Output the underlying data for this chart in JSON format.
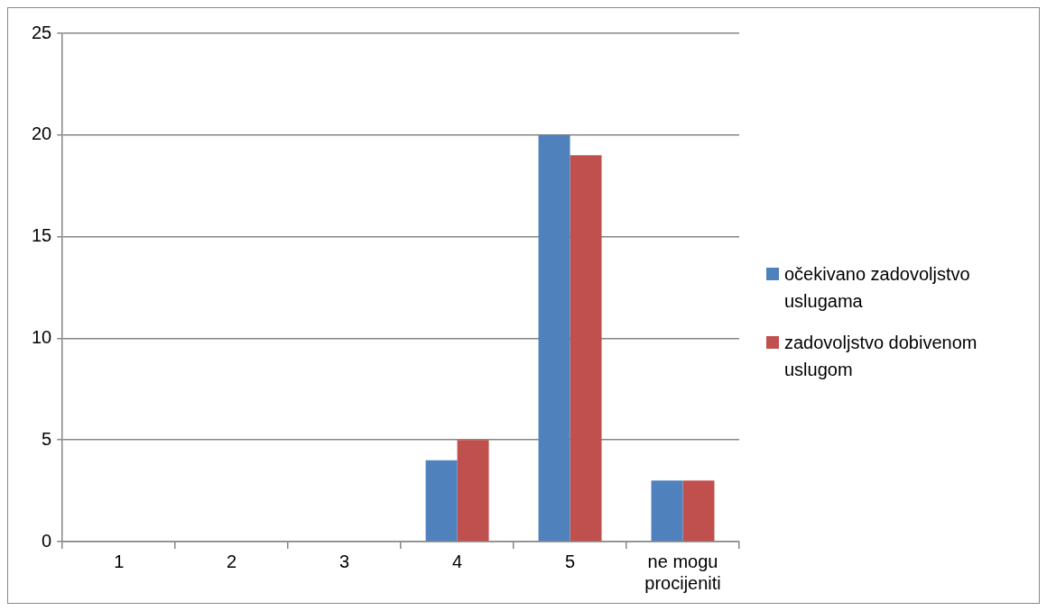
{
  "chart_data": {
    "type": "bar",
    "categories": [
      "1",
      "2",
      "3",
      "4",
      "5",
      "ne mogu procijeniti"
    ],
    "series": [
      {
        "name": "očekivano zadovoljstvo uslugama",
        "color": "#4f81bd",
        "values": [
          0,
          0,
          0,
          4,
          20,
          3
        ]
      },
      {
        "name": "zadovoljstvo dobivenom uslugom",
        "color": "#c0504d",
        "values": [
          0,
          0,
          0,
          5,
          19,
          3
        ]
      }
    ],
    "ylim": [
      0,
      25
    ],
    "yticks": [
      0,
      5,
      10,
      15,
      20,
      25
    ],
    "grid": "y",
    "legend": "right"
  }
}
